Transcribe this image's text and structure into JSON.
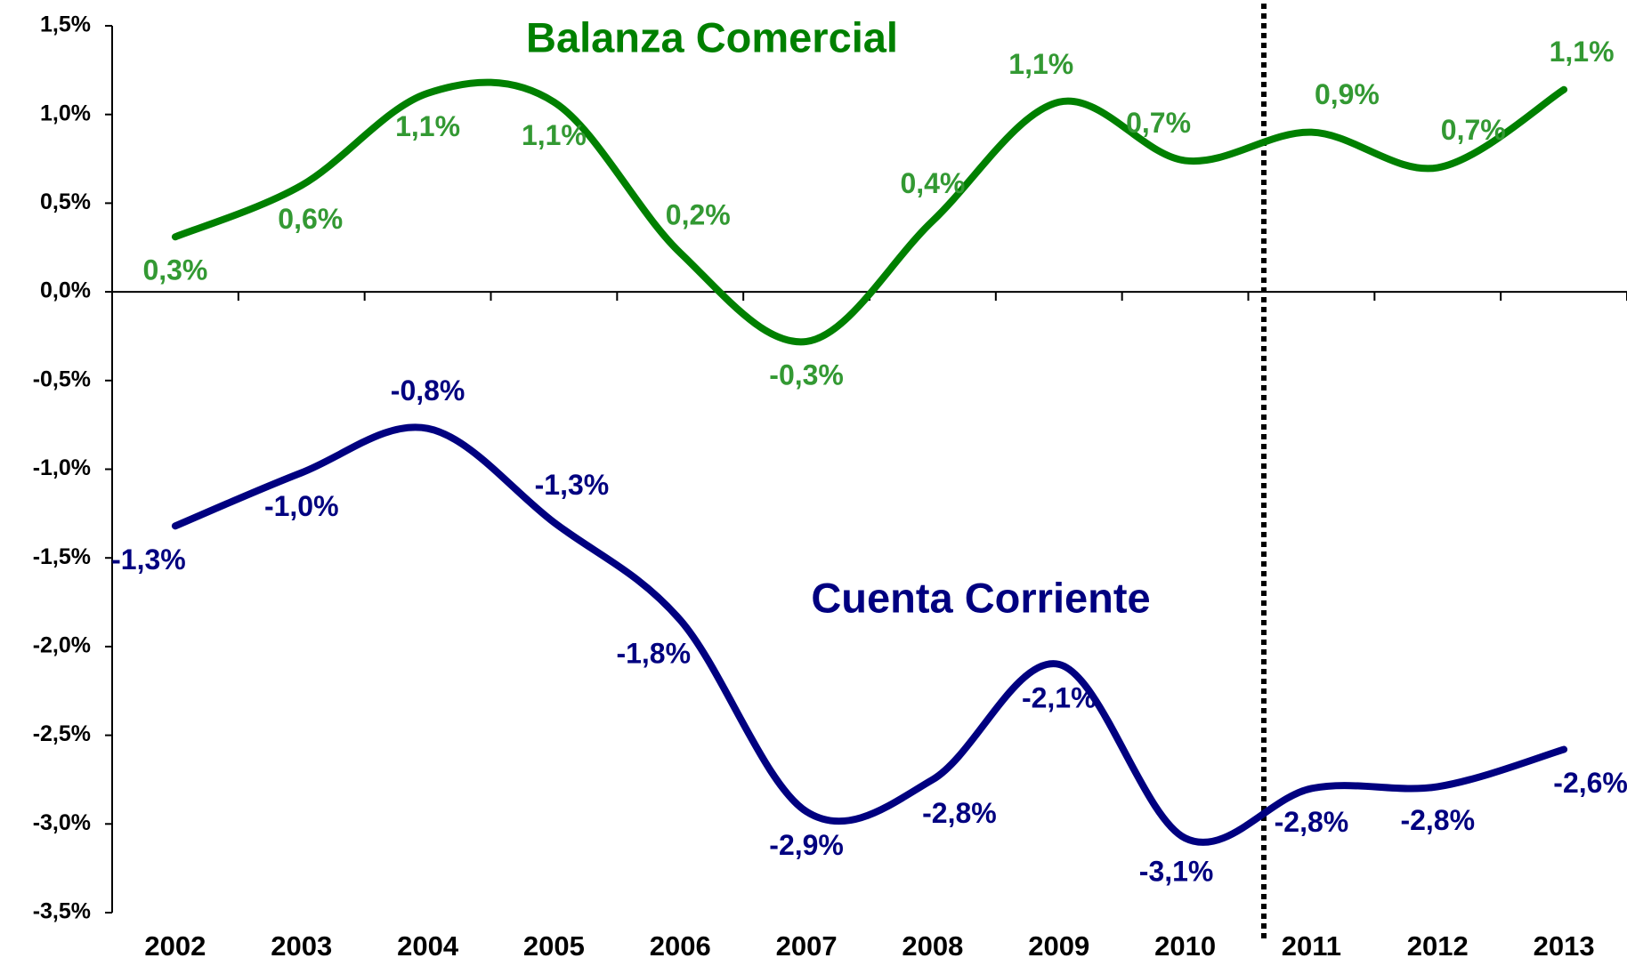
{
  "chart_data": {
    "type": "line",
    "categories": [
      "2002",
      "2003",
      "2004",
      "2005",
      "2006",
      "2007",
      "2008",
      "2009",
      "2010",
      "2011",
      "2012",
      "2013"
    ],
    "series": [
      {
        "name": "Balanza Comercial",
        "color": "#008000",
        "label_color": "#339933",
        "values": [
          0.31,
          0.6,
          1.12,
          1.07,
          0.22,
          -0.28,
          0.4,
          1.07,
          0.74,
          0.9,
          0.7,
          1.14
        ],
        "value_labels": [
          "0,3%",
          "0,6%",
          "1,1%",
          "1,1%",
          "0,2%",
          "-0,3%",
          "0,4%",
          "1,1%",
          "0,7%",
          "0,9%",
          "0,7%",
          "1,1%"
        ]
      },
      {
        "name": "Cuenta Corriente",
        "color": "#000080",
        "label_color": "#000080",
        "values": [
          -1.32,
          -1.02,
          -0.77,
          -1.3,
          -1.85,
          -2.93,
          -2.75,
          -2.1,
          -3.08,
          -2.8,
          -2.79,
          -2.58
        ],
        "value_labels": [
          "-1,3%",
          "-1,0%",
          "-0,8%",
          "-1,3%",
          "-1,8%",
          "-2,9%",
          "-2,8%",
          "-2,1%",
          "-3,1%",
          "-2,8%",
          "-2,8%",
          "-2,6%"
        ]
      }
    ],
    "ylim": [
      -3.5,
      1.5
    ],
    "yticks": [
      {
        "value": -3.5,
        "label": "-3,5%"
      },
      {
        "value": -3.0,
        "label": "-3,0%"
      },
      {
        "value": -2.5,
        "label": "-2,5%"
      },
      {
        "value": -2.0,
        "label": "-2,0%"
      },
      {
        "value": -1.5,
        "label": "-1,5%"
      },
      {
        "value": -1.0,
        "label": "-1,0%"
      },
      {
        "value": -0.5,
        "label": "-0,5%"
      },
      {
        "value": 0.0,
        "label": "0,0%"
      },
      {
        "value": 0.5,
        "label": "0,5%"
      },
      {
        "value": 1.0,
        "label": "1,0%"
      },
      {
        "value": 1.5,
        "label": "1,5%"
      }
    ],
    "grid": false,
    "legend": false
  }
}
